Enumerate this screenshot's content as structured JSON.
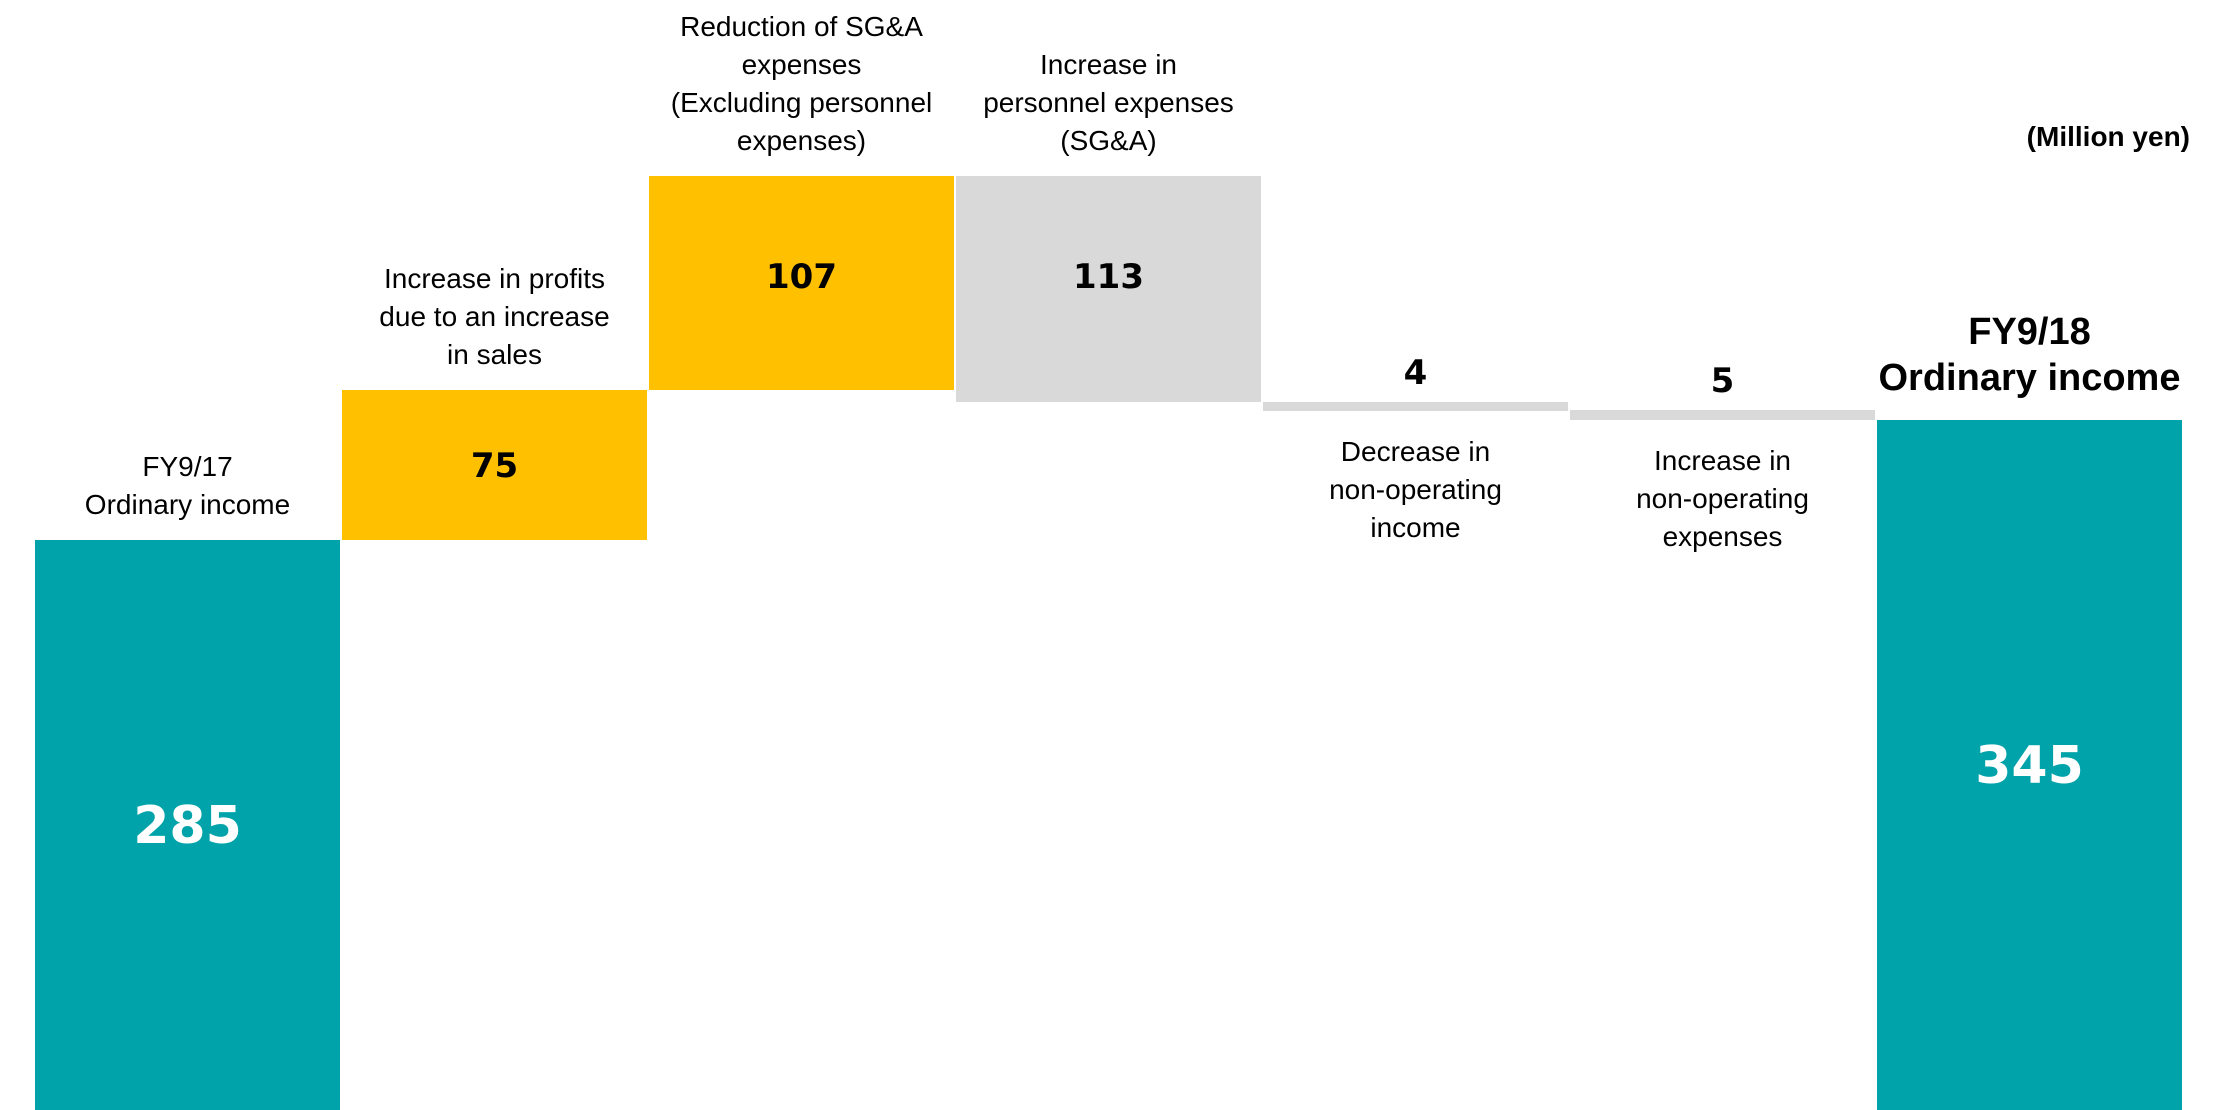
{
  "chart_data": {
    "type": "bar",
    "subtype": "waterfall",
    "unit": "(Million yen)",
    "categories": [
      {
        "label_lines": [
          "FY9/17",
          "Ordinary income"
        ],
        "value": 285,
        "kind": "total",
        "label_pos": "above",
        "emphasis": false
      },
      {
        "label_lines": [
          "Increase in profits",
          "due to an increase",
          "in sales"
        ],
        "value": 75,
        "kind": "increase",
        "label_pos": "above"
      },
      {
        "label_lines": [
          "Reduction of SG&A",
          "expenses",
          "(Excluding personnel",
          "expenses)"
        ],
        "value": 107,
        "kind": "increase",
        "label_pos": "above"
      },
      {
        "label_lines": [
          "Increase in",
          "personnel expenses",
          "(SG&A)"
        ],
        "value": -113,
        "kind": "decrease",
        "label_pos": "above"
      },
      {
        "label_lines": [
          "Decrease in",
          "non-operating",
          "income"
        ],
        "value": -4,
        "kind": "decrease",
        "label_pos": "below"
      },
      {
        "label_lines": [
          "Increase in",
          "non-operating",
          "expenses"
        ],
        "value": -5,
        "kind": "decrease",
        "label_pos": "below"
      },
      {
        "label_lines": [
          "FY9/18",
          "Ordinary income"
        ],
        "value": 345,
        "kind": "total",
        "label_pos": "above",
        "emphasis": true
      }
    ],
    "value_labels": [
      "285",
      "75",
      "107",
      "113",
      "4",
      "5",
      "345"
    ],
    "colors": {
      "total": "#00a3a9",
      "increase": "#ffc000",
      "decrease": "#d9d9d9"
    },
    "ylim": [
      0,
      465
    ],
    "grid": false,
    "legend": "none"
  }
}
